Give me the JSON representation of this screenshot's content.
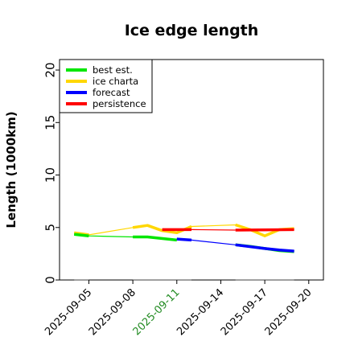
{
  "chart_data": {
    "type": "line",
    "title": "Ice edge length",
    "ylabel": "Length (1000km)",
    "xlabel": "",
    "ylim": [
      0,
      21
    ],
    "yticks": [
      0,
      5,
      10,
      15,
      20
    ],
    "xlim": [
      "2025-09-03",
      "2025-09-21"
    ],
    "xticks": [
      "2025-09-05",
      "2025-09-08",
      "2025-09-11",
      "2025-09-14",
      "2025-09-17",
      "2025-09-20"
    ],
    "highlighted_xtick": "2025-09-11",
    "highlight_color": "#228b22",
    "grid": false,
    "legend_position": "top-left",
    "series": [
      {
        "name": "best est.",
        "color": "#00e600",
        "points": [
          [
            "2025-09-04",
            4.35
          ],
          [
            "2025-09-05",
            4.2
          ]
        ],
        "points_b": [
          [
            "2025-09-08",
            4.1
          ],
          [
            "2025-09-09",
            4.1
          ],
          [
            "2025-09-11",
            3.8
          ]
        ],
        "points_c": [
          [
            "2025-09-15",
            3.35
          ],
          [
            "2025-09-16",
            3.2
          ],
          [
            "2025-09-18",
            2.8
          ],
          [
            "2025-09-19",
            2.7
          ]
        ]
      },
      {
        "name": "ice charta",
        "color": "#ffd700",
        "points": [
          [
            "2025-09-04",
            4.5
          ],
          [
            "2025-09-05",
            4.3
          ]
        ],
        "points_b": [
          [
            "2025-09-08",
            5.0
          ],
          [
            "2025-09-09",
            5.2
          ],
          [
            "2025-09-10",
            4.7
          ],
          [
            "2025-09-11",
            4.5
          ],
          [
            "2025-09-12",
            5.1
          ]
        ],
        "points_c": [
          [
            "2025-09-15",
            5.25
          ],
          [
            "2025-09-16",
            4.8
          ],
          [
            "2025-09-17",
            4.2
          ],
          [
            "2025-09-18",
            4.8
          ],
          [
            "2025-09-19",
            4.9
          ]
        ]
      },
      {
        "name": "forecast",
        "color": "#0000ff",
        "points": [
          [
            "2025-09-11",
            3.9
          ],
          [
            "2025-09-12",
            3.8
          ],
          [
            "2025-09-15",
            3.35
          ],
          [
            "2025-09-17",
            3.0
          ],
          [
            "2025-09-18",
            2.85
          ],
          [
            "2025-09-19",
            2.75
          ]
        ]
      },
      {
        "name": "persistence",
        "color": "#ff0000",
        "points": [
          [
            "2025-09-10",
            4.8
          ],
          [
            "2025-09-12",
            4.8
          ],
          [
            "2025-09-15",
            4.75
          ],
          [
            "2025-09-19",
            4.8
          ]
        ]
      }
    ],
    "baseline_segments": [
      [
        "2025-09-04",
        "2025-09-05"
      ],
      [
        "2025-09-08",
        "2025-09-12"
      ],
      [
        "2025-09-15",
        "2025-09-19"
      ]
    ],
    "baseline_value": 0,
    "baseline_color": "#808080"
  }
}
